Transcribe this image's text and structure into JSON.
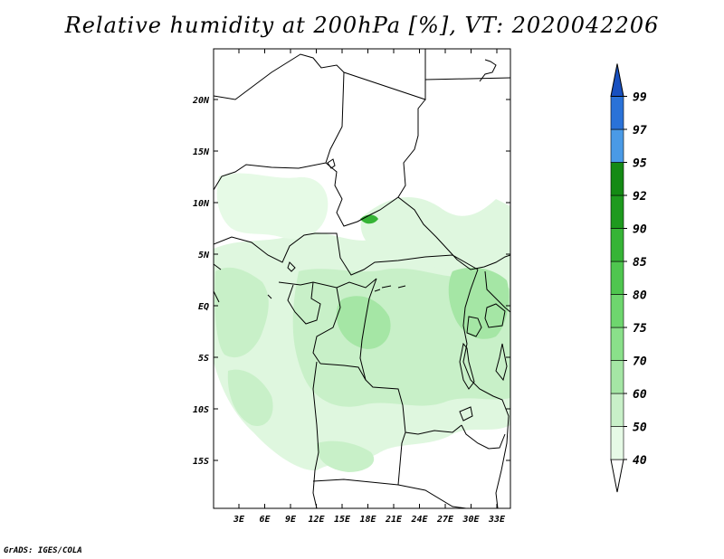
{
  "title": "Relative humidity at 200hPa [%], VT: 2020042206",
  "credit": "GrADS: IGES/COLA",
  "map": {
    "lat_labels": [
      "20N",
      "15N",
      "10N",
      "5N",
      "EQ",
      "5S",
      "10S",
      "15S"
    ],
    "lon_labels": [
      "3E",
      "6E",
      "9E",
      "12E",
      "15E",
      "18E",
      "21E",
      "24E",
      "27E",
      "30E",
      "33E"
    ]
  },
  "colorbar": {
    "levels": [
      "40",
      "50",
      "60",
      "70",
      "75",
      "80",
      "85",
      "90",
      "92",
      "95",
      "97",
      "99"
    ],
    "colors": [
      "#ffffff",
      "#e6fae6",
      "#c8f0c8",
      "#a5e6a5",
      "#8ae08a",
      "#6ed66e",
      "#4fc64f",
      "#36b436",
      "#1e9a1e",
      "#148a14",
      "#4a9ae6",
      "#2a72d8",
      "#1850c0"
    ]
  }
}
